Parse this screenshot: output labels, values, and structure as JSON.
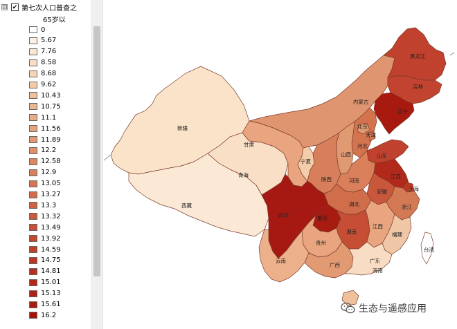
{
  "layer": {
    "name": "第七次人口普查之",
    "field": "65岁以",
    "checked": true,
    "expander": "⊟"
  },
  "legend": {
    "classes": [
      {
        "label": "0",
        "color": "#ffffff"
      },
      {
        "label": "5.67",
        "color": "#fcf0e2"
      },
      {
        "label": "7.76",
        "color": "#fbe6d1"
      },
      {
        "label": "8.58",
        "color": "#f8dcc3"
      },
      {
        "label": "8.68",
        "color": "#f6d4b6"
      },
      {
        "label": "9.62",
        "color": "#f2cba8"
      },
      {
        "label": "10.43",
        "color": "#efc09b"
      },
      {
        "label": "10.75",
        "color": "#ecb690"
      },
      {
        "label": "11.1",
        "color": "#e8ad86"
      },
      {
        "label": "11.56",
        "color": "#e5a47c"
      },
      {
        "label": "11.89",
        "color": "#e29a73"
      },
      {
        "label": "12.2",
        "color": "#de916a"
      },
      {
        "label": "12.58",
        "color": "#db8862"
      },
      {
        "label": "12.9",
        "color": "#d77f5a"
      },
      {
        "label": "13.05",
        "color": "#d47652"
      },
      {
        "label": "13.27",
        "color": "#d06d4a"
      },
      {
        "label": "13.3",
        "color": "#cc6443"
      },
      {
        "label": "13.32",
        "color": "#c95b3c"
      },
      {
        "label": "13.49",
        "color": "#c55236"
      },
      {
        "label": "13.92",
        "color": "#c14930"
      },
      {
        "label": "14.59",
        "color": "#bd412a"
      },
      {
        "label": "14.75",
        "color": "#b93924"
      },
      {
        "label": "14.81",
        "color": "#b4311f"
      },
      {
        "label": "15.01",
        "color": "#b0291a"
      },
      {
        "label": "15.13",
        "color": "#ac2215"
      },
      {
        "label": "15.61",
        "color": "#a81b11"
      },
      {
        "label": "16.2",
        "color": "#a4140d"
      }
    ]
  },
  "provinces": [
    {
      "name": "新疆",
      "color": "#fbe3c9"
    },
    {
      "name": "西藏",
      "color": "#fbe9d6"
    },
    {
      "name": "青海",
      "color": "#f9dfc6"
    },
    {
      "name": "甘肃",
      "color": "#e8a57f"
    },
    {
      "name": "内蒙古",
      "color": "#df9670"
    },
    {
      "name": "黑龙江",
      "color": "#c0412d"
    },
    {
      "name": "吉林",
      "color": "#c2432f"
    },
    {
      "name": "辽宁",
      "color": "#a8190f"
    },
    {
      "name": "北京",
      "color": "#e09a72"
    },
    {
      "name": "天津",
      "color": "#d57a56"
    },
    {
      "name": "河北",
      "color": "#d4744f"
    },
    {
      "name": "山西",
      "color": "#e09a72"
    },
    {
      "name": "山东",
      "color": "#c0412d"
    },
    {
      "name": "宁夏",
      "color": "#f3ccaa"
    },
    {
      "name": "陕西",
      "color": "#d77f5a"
    },
    {
      "name": "河南",
      "color": "#d97f5a"
    },
    {
      "name": "江苏",
      "color": "#b0291a"
    },
    {
      "name": "上海",
      "color": "#b93924"
    },
    {
      "name": "安徽",
      "color": "#c8573c"
    },
    {
      "name": "湖北",
      "color": "#d06d4a"
    },
    {
      "name": "浙江",
      "color": "#d37a55"
    },
    {
      "name": "四川",
      "color": "#a51912"
    },
    {
      "name": "重庆",
      "color": "#a81b11"
    },
    {
      "name": "湖南",
      "color": "#c54e34"
    },
    {
      "name": "江西",
      "color": "#e8a57f"
    },
    {
      "name": "福建",
      "color": "#f0c7a6"
    },
    {
      "name": "贵州",
      "color": "#e8a57f"
    },
    {
      "name": "云南",
      "color": "#ecb08a"
    },
    {
      "name": "广西",
      "color": "#e29a73"
    },
    {
      "name": "广东",
      "color": "#f8dcc3"
    },
    {
      "name": "海南",
      "color": "#efc09b"
    },
    {
      "name": "台湾",
      "color": "#ffffff"
    }
  ],
  "watermark": {
    "text": "生态与遥感应用",
    "icon": "wechat-icon"
  }
}
